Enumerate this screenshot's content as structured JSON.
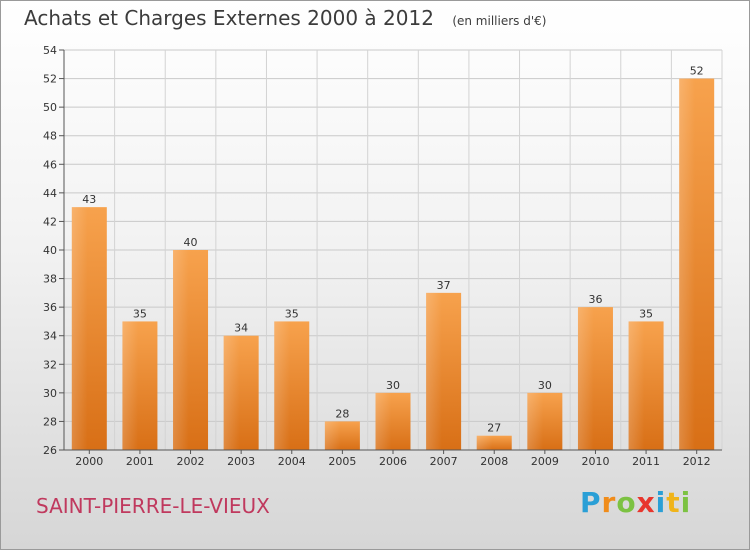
{
  "chart_data": {
    "type": "bar",
    "title": "Achats et Charges Externes 2000 à 2012",
    "unit_label": "(en milliers d'€)",
    "categories": [
      "2000",
      "2001",
      "2002",
      "2003",
      "2004",
      "2005",
      "2006",
      "2007",
      "2008",
      "2009",
      "2010",
      "2011",
      "2012"
    ],
    "values": [
      43,
      35,
      40,
      34,
      35,
      28,
      30,
      37,
      27,
      30,
      36,
      35,
      52
    ],
    "ylim": [
      26,
      54
    ],
    "yticks": [
      26,
      28,
      30,
      32,
      34,
      36,
      38,
      40,
      42,
      44,
      46,
      48,
      50,
      52,
      54
    ],
    "grid": true,
    "bar_color": "#e8892e"
  },
  "location": "SAINT-PIERRE-LE-VIEUX",
  "logo": {
    "letters": [
      "P",
      "r",
      "o",
      "x",
      "i",
      "t",
      "i"
    ],
    "colors": [
      "#2a9fd6",
      "#f08c1a",
      "#7cc242",
      "#e8362d",
      "#2a9fd6",
      "#f0b41a",
      "#7cc242"
    ]
  }
}
